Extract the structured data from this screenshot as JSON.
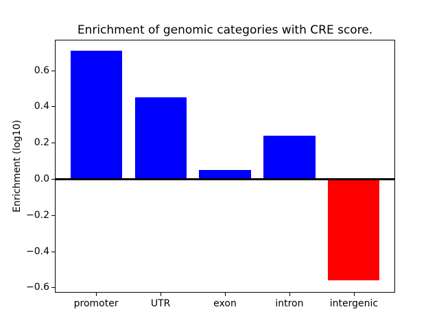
{
  "figure": {
    "background": "#ffffff",
    "text_color": "#000000"
  },
  "chart_data": {
    "type": "bar",
    "title": "Enrichment of genomic categories with CRE score.",
    "xlabel": "",
    "ylabel": "Enrichment (log10)",
    "categories": [
      "promoter",
      "UTR",
      "exon",
      "intron",
      "intergenic"
    ],
    "values": [
      0.71,
      0.45,
      0.05,
      0.24,
      -0.56
    ],
    "bar_colors": [
      "#0000ff",
      "#0000ff",
      "#0000ff",
      "#0000ff",
      "#ff0000"
    ],
    "positive_color": "#0000ff",
    "negative_color": "#ff0000",
    "bar_width": 0.8,
    "xlim": [
      -0.64,
      4.64
    ],
    "ylim": [
      -0.629,
      0.769
    ],
    "yticks": [
      -0.6,
      -0.4,
      -0.2,
      0.0,
      0.2,
      0.4,
      0.6
    ],
    "ytick_labels": [
      "−0.6",
      "−0.4",
      "−0.2",
      "0.0",
      "0.2",
      "0.4",
      "0.6"
    ],
    "zero_line": true,
    "grid": false,
    "legend": null
  }
}
